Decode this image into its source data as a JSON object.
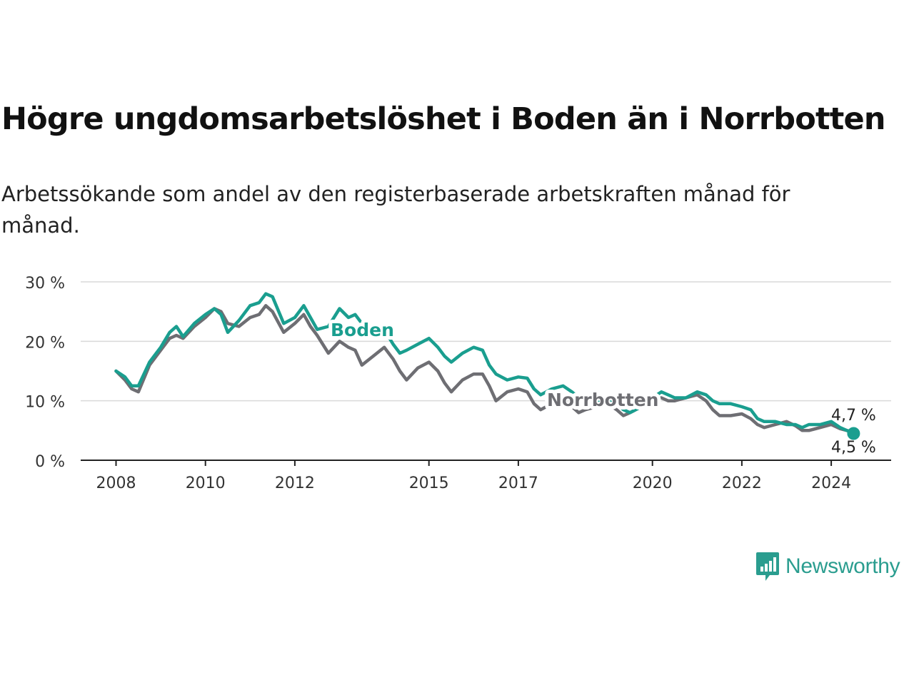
{
  "title": "Högre ungdomsarbetslöshet i Boden än i Norrbotten",
  "subtitle": "Arbetssökande som andel av den registerbaserade arbetskraften månad för månad.",
  "brand": {
    "name": "Newsworthy",
    "color": "#2a9d8f",
    "icon": "newsworthy-logo-icon"
  },
  "chart_data": {
    "type": "line",
    "title": "Högre ungdomsarbetslöshet i Boden än i Norrbotten",
    "subtitle": "Arbetssökande som andel av den registerbaserade arbetskraften månad för månad.",
    "xlabel": "",
    "ylabel": "",
    "xlim": [
      2008,
      2024.6
    ],
    "ylim": [
      0,
      30
    ],
    "yticks": [
      0,
      10,
      20,
      30
    ],
    "ytick_labels": [
      "0 %",
      "10 %",
      "20 %",
      "30 %"
    ],
    "xticks": [
      2008,
      2010,
      2012,
      2015,
      2017,
      2020,
      2022,
      2024
    ],
    "xtick_labels": [
      "2008",
      "2010",
      "2012",
      "2015",
      "2017",
      "2020",
      "2022",
      "2024"
    ],
    "grid": true,
    "legend": "inline labels",
    "series": [
      {
        "name": "Boden",
        "color": "#1a9e8f",
        "end_label": "4,5 %",
        "points": [
          [
            2008.0,
            15.0
          ],
          [
            2008.2,
            14.0
          ],
          [
            2008.35,
            12.5
          ],
          [
            2008.5,
            12.5
          ],
          [
            2008.75,
            16.5
          ],
          [
            2009.0,
            19.0
          ],
          [
            2009.2,
            21.5
          ],
          [
            2009.35,
            22.5
          ],
          [
            2009.5,
            20.8
          ],
          [
            2009.75,
            23.0
          ],
          [
            2010.0,
            24.5
          ],
          [
            2010.2,
            25.5
          ],
          [
            2010.35,
            24.5
          ],
          [
            2010.5,
            21.5
          ],
          [
            2010.75,
            23.5
          ],
          [
            2011.0,
            26.0
          ],
          [
            2011.2,
            26.5
          ],
          [
            2011.35,
            28.0
          ],
          [
            2011.5,
            27.5
          ],
          [
            2011.75,
            23.0
          ],
          [
            2012.0,
            24.0
          ],
          [
            2012.2,
            26.0
          ],
          [
            2012.35,
            24.0
          ],
          [
            2012.5,
            22.0
          ],
          [
            2012.75,
            22.5
          ],
          [
            2013.0,
            25.5
          ],
          [
            2013.2,
            24.0
          ],
          [
            2013.35,
            24.5
          ],
          [
            2013.5,
            23.0
          ],
          [
            2013.75,
            22.5
          ],
          [
            2014.0,
            22.0
          ],
          [
            2014.2,
            19.5
          ],
          [
            2014.35,
            18.0
          ],
          [
            2014.5,
            18.5
          ],
          [
            2014.75,
            19.5
          ],
          [
            2015.0,
            20.5
          ],
          [
            2015.2,
            19.0
          ],
          [
            2015.35,
            17.5
          ],
          [
            2015.5,
            16.5
          ],
          [
            2015.75,
            18.0
          ],
          [
            2016.0,
            19.0
          ],
          [
            2016.2,
            18.5
          ],
          [
            2016.35,
            16.0
          ],
          [
            2016.5,
            14.5
          ],
          [
            2016.75,
            13.5
          ],
          [
            2017.0,
            14.0
          ],
          [
            2017.2,
            13.8
          ],
          [
            2017.35,
            12.0
          ],
          [
            2017.5,
            11.0
          ],
          [
            2017.75,
            12.0
          ],
          [
            2018.0,
            12.5
          ],
          [
            2018.2,
            11.5
          ],
          [
            2018.35,
            10.5
          ],
          [
            2018.5,
            9.5
          ],
          [
            2018.75,
            10.0
          ],
          [
            2019.0,
            10.5
          ],
          [
            2019.2,
            9.5
          ],
          [
            2019.35,
            8.5
          ],
          [
            2019.5,
            8.0
          ],
          [
            2019.75,
            9.0
          ],
          [
            2020.0,
            10.5
          ],
          [
            2020.2,
            11.5
          ],
          [
            2020.35,
            11.0
          ],
          [
            2020.5,
            10.5
          ],
          [
            2020.75,
            10.5
          ],
          [
            2021.0,
            11.5
          ],
          [
            2021.2,
            11.0
          ],
          [
            2021.35,
            10.0
          ],
          [
            2021.5,
            9.5
          ],
          [
            2021.75,
            9.5
          ],
          [
            2022.0,
            9.0
          ],
          [
            2022.2,
            8.5
          ],
          [
            2022.35,
            7.0
          ],
          [
            2022.5,
            6.5
          ],
          [
            2022.75,
            6.5
          ],
          [
            2023.0,
            6.0
          ],
          [
            2023.2,
            6.0
          ],
          [
            2023.35,
            5.5
          ],
          [
            2023.5,
            6.0
          ],
          [
            2023.75,
            6.0
          ],
          [
            2024.0,
            6.5
          ],
          [
            2024.2,
            5.5
          ],
          [
            2024.35,
            5.0
          ],
          [
            2024.5,
            4.5
          ]
        ]
      },
      {
        "name": "Norrbotten",
        "color": "#6e6e73",
        "end_label": "4,7 %",
        "points": [
          [
            2008.0,
            15.0
          ],
          [
            2008.2,
            13.5
          ],
          [
            2008.35,
            12.0
          ],
          [
            2008.5,
            11.5
          ],
          [
            2008.75,
            16.0
          ],
          [
            2009.0,
            18.5
          ],
          [
            2009.2,
            20.5
          ],
          [
            2009.35,
            21.0
          ],
          [
            2009.5,
            20.5
          ],
          [
            2009.75,
            22.5
          ],
          [
            2010.0,
            24.0
          ],
          [
            2010.2,
            25.5
          ],
          [
            2010.35,
            25.0
          ],
          [
            2010.5,
            23.0
          ],
          [
            2010.75,
            22.5
          ],
          [
            2011.0,
            24.0
          ],
          [
            2011.2,
            24.5
          ],
          [
            2011.35,
            26.0
          ],
          [
            2011.5,
            25.0
          ],
          [
            2011.75,
            21.5
          ],
          [
            2012.0,
            23.0
          ],
          [
            2012.2,
            24.5
          ],
          [
            2012.35,
            22.5
          ],
          [
            2012.5,
            21.0
          ],
          [
            2012.75,
            18.0
          ],
          [
            2013.0,
            20.0
          ],
          [
            2013.2,
            19.0
          ],
          [
            2013.35,
            18.5
          ],
          [
            2013.5,
            16.0
          ],
          [
            2013.75,
            17.5
          ],
          [
            2014.0,
            19.0
          ],
          [
            2014.2,
            17.0
          ],
          [
            2014.35,
            15.0
          ],
          [
            2014.5,
            13.5
          ],
          [
            2014.75,
            15.5
          ],
          [
            2015.0,
            16.5
          ],
          [
            2015.2,
            15.0
          ],
          [
            2015.35,
            13.0
          ],
          [
            2015.5,
            11.5
          ],
          [
            2015.75,
            13.5
          ],
          [
            2016.0,
            14.5
          ],
          [
            2016.2,
            14.5
          ],
          [
            2016.35,
            12.5
          ],
          [
            2016.5,
            10.0
          ],
          [
            2016.75,
            11.5
          ],
          [
            2017.0,
            12.0
          ],
          [
            2017.2,
            11.5
          ],
          [
            2017.35,
            9.5
          ],
          [
            2017.5,
            8.5
          ],
          [
            2017.75,
            9.5
          ],
          [
            2018.0,
            10.0
          ],
          [
            2018.2,
            9.0
          ],
          [
            2018.35,
            8.0
          ],
          [
            2018.5,
            8.5
          ],
          [
            2018.75,
            9.0
          ],
          [
            2019.0,
            9.5
          ],
          [
            2019.2,
            8.5
          ],
          [
            2019.35,
            7.5
          ],
          [
            2019.5,
            8.0
          ],
          [
            2019.75,
            9.0
          ],
          [
            2020.0,
            10.0
          ],
          [
            2020.2,
            10.5
          ],
          [
            2020.35,
            10.0
          ],
          [
            2020.5,
            10.0
          ],
          [
            2020.75,
            10.5
          ],
          [
            2021.0,
            11.0
          ],
          [
            2021.2,
            10.0
          ],
          [
            2021.35,
            8.5
          ],
          [
            2021.5,
            7.5
          ],
          [
            2021.75,
            7.5
          ],
          [
            2022.0,
            7.8
          ],
          [
            2022.2,
            7.0
          ],
          [
            2022.35,
            6.0
          ],
          [
            2022.5,
            5.5
          ],
          [
            2022.75,
            6.0
          ],
          [
            2023.0,
            6.5
          ],
          [
            2023.2,
            5.8
          ],
          [
            2023.35,
            5.0
          ],
          [
            2023.5,
            5.0
          ],
          [
            2023.75,
            5.5
          ],
          [
            2024.0,
            6.0
          ],
          [
            2024.2,
            5.3
          ],
          [
            2024.35,
            5.0
          ],
          [
            2024.5,
            4.7
          ]
        ]
      }
    ]
  }
}
